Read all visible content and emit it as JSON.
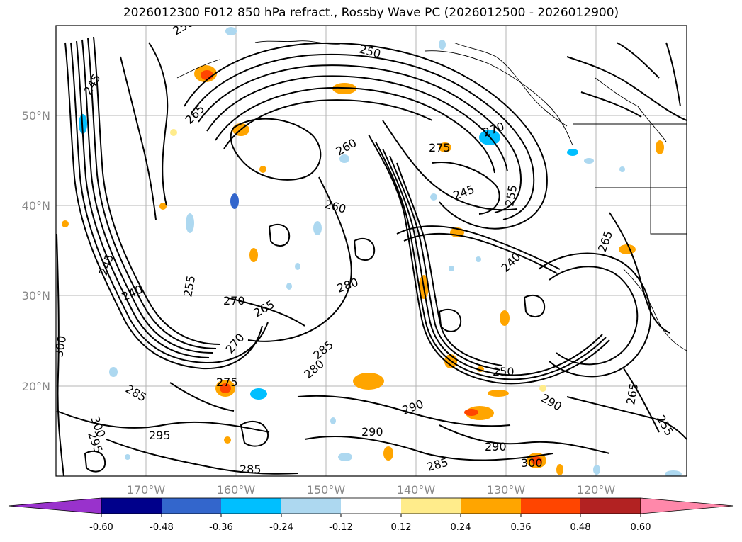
{
  "title": "2026012300 F012 850 hPa refract., Rossby Wave PC (2026012500 - 2026012900)",
  "lat_labels": [
    "50°N",
    "40°N",
    "30°N",
    "20°N"
  ],
  "lon_labels": [
    "170°W",
    "160°W",
    "150°W",
    "140°W",
    "130°W",
    "120°W"
  ],
  "contour_labels": [
    "245",
    "250",
    "265",
    "260",
    "275",
    "270",
    "245",
    "255",
    "240",
    "265",
    "280",
    "270",
    "265",
    "240",
    "245",
    "255",
    "270",
    "275",
    "285",
    "280",
    "250",
    "290",
    "295",
    "285",
    "300",
    "295",
    "290",
    "285",
    "290",
    "300",
    "285",
    "255",
    "265",
    "290",
    "260",
    "300",
    "250"
  ],
  "colorbar": {
    "labels": [
      "-0.60",
      "-0.48",
      "-0.36",
      "-0.24",
      "-0.12",
      "0.12",
      "0.24",
      "0.36",
      "0.48",
      "0.60"
    ],
    "colors": [
      "#9932cc",
      "#00008b",
      "#3366cc",
      "#00bfff",
      "#add8f0",
      "#ffffff",
      "#ffec8b",
      "#ffa500",
      "#ff4500",
      "#b22222",
      "#ff88aa"
    ]
  }
}
